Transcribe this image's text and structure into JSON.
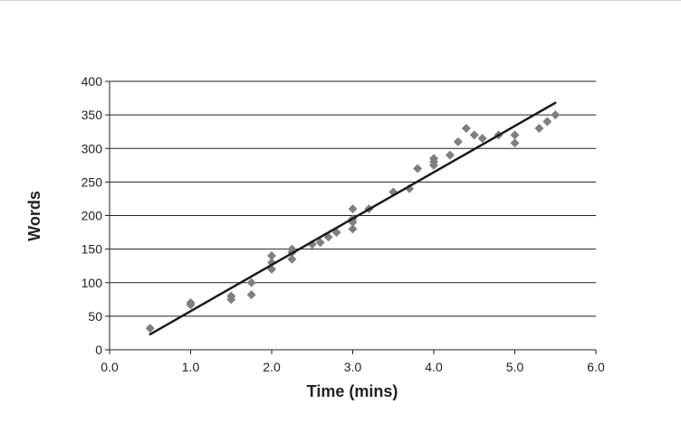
{
  "chart_data": {
    "type": "scatter",
    "title": "",
    "xlabel": "Time (mins)",
    "ylabel": "Words",
    "xlim": [
      0,
      6
    ],
    "ylim": [
      0,
      400
    ],
    "x_ticks": [
      "0.0",
      "1.0",
      "2.0",
      "3.0",
      "4.0",
      "5.0",
      "6.0"
    ],
    "y_ticks": [
      "0",
      "50",
      "100",
      "150",
      "200",
      "250",
      "300",
      "350",
      "400"
    ],
    "grid": "horizontal",
    "marker": "diamond",
    "colors": {
      "points": "#7f7f7f",
      "trendline": "#1a1a1a",
      "grid": "#222222"
    },
    "points": [
      [
        0.5,
        32
      ],
      [
        1.0,
        70
      ],
      [
        1.0,
        67
      ],
      [
        1.5,
        80
      ],
      [
        1.5,
        75
      ],
      [
        1.75,
        100
      ],
      [
        1.75,
        82
      ],
      [
        2.0,
        140
      ],
      [
        2.0,
        130
      ],
      [
        2.0,
        120
      ],
      [
        2.25,
        150
      ],
      [
        2.25,
        145
      ],
      [
        2.25,
        135
      ],
      [
        2.5,
        157
      ],
      [
        2.6,
        160
      ],
      [
        2.7,
        168
      ],
      [
        2.8,
        175
      ],
      [
        3.0,
        210
      ],
      [
        3.0,
        195
      ],
      [
        3.0,
        190
      ],
      [
        3.0,
        180
      ],
      [
        3.2,
        210
      ],
      [
        3.5,
        235
      ],
      [
        3.7,
        240
      ],
      [
        3.8,
        270
      ],
      [
        4.0,
        285
      ],
      [
        4.0,
        280
      ],
      [
        4.0,
        275
      ],
      [
        4.2,
        290
      ],
      [
        4.3,
        310
      ],
      [
        4.4,
        330
      ],
      [
        4.5,
        320
      ],
      [
        4.6,
        315
      ],
      [
        4.8,
        320
      ],
      [
        5.0,
        320
      ],
      [
        5.0,
        308
      ],
      [
        5.3,
        330
      ],
      [
        5.4,
        340
      ],
      [
        5.5,
        350
      ]
    ],
    "trendline": {
      "x": [
        0.5,
        5.5
      ],
      "y": [
        23,
        368
      ]
    }
  }
}
